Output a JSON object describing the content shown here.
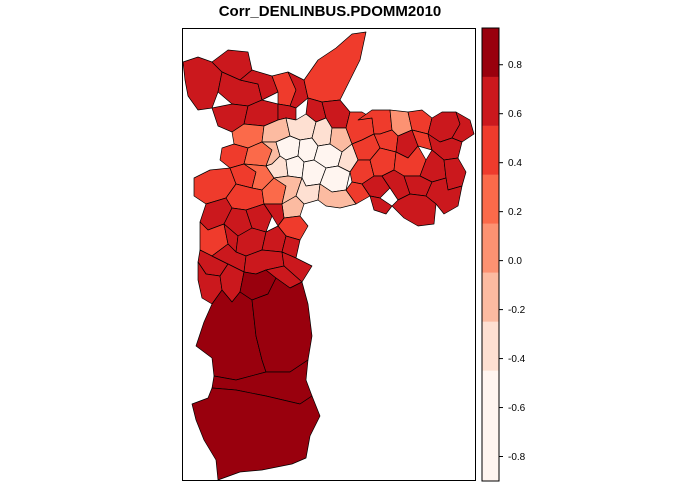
{
  "title": "Corr_DENLINBUS.PDOMM2010",
  "legend": {
    "tick_labels": [
      "0.8",
      "0.6",
      "0.4",
      "0.2",
      "0.0",
      "-0.2",
      "-0.4",
      "-0.6",
      "-0.8"
    ],
    "tick_values": [
      0.8,
      0.6,
      0.4,
      0.2,
      0.0,
      -0.2,
      -0.4,
      -0.6,
      -0.8
    ],
    "range": [
      -0.9,
      0.95
    ],
    "bins_top_to_bottom": [
      {
        "from": 0.75,
        "to": 0.95,
        "color": "#99000d"
      },
      {
        "from": 0.55,
        "to": 0.75,
        "color": "#cb181d"
      },
      {
        "from": 0.35,
        "to": 0.55,
        "color": "#ef3b2c"
      },
      {
        "from": 0.15,
        "to": 0.35,
        "color": "#fb6a4a"
      },
      {
        "from": -0.05,
        "to": 0.15,
        "color": "#fc9272"
      },
      {
        "from": -0.25,
        "to": -0.05,
        "color": "#fcbba1"
      },
      {
        "from": -0.45,
        "to": -0.25,
        "color": "#fee0d2"
      },
      {
        "from": -0.9,
        "to": -0.45,
        "color": "#fff5f0"
      }
    ]
  },
  "map": {
    "region": "São Paulo municipal districts",
    "colors": {
      "darkest": "#99000d",
      "dark": "#cb181d",
      "mid_dark": "#ef3b2c",
      "mid": "#fb6a4a",
      "light_mid": "#fc9272",
      "light": "#fcbba1",
      "very_light": "#fee0d2",
      "lightest": "#fff5f0",
      "border": "#000000"
    }
  }
}
